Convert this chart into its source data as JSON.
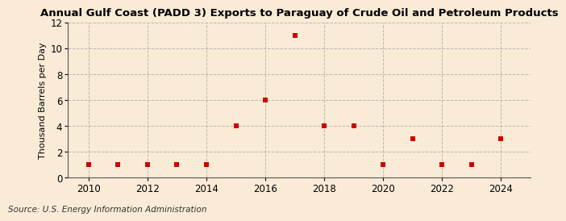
{
  "title": "Annual Gulf Coast (PADD 3) Exports to Paraguay of Crude Oil and Petroleum Products",
  "ylabel": "Thousand Barrels per Day",
  "source": "Source: U.S. Energy Information Administration",
  "background_color": "#faebd7",
  "plot_background_color": "#faebd7",
  "marker_color": "#cc0000",
  "marker": "s",
  "marker_size": 18,
  "years": [
    2010,
    2011,
    2012,
    2013,
    2014,
    2015,
    2016,
    2017,
    2018,
    2019,
    2020,
    2021,
    2022,
    2023,
    2024
  ],
  "values": [
    1,
    1,
    1,
    1,
    1,
    4,
    6,
    11,
    4,
    4,
    1,
    3,
    1,
    1,
    3
  ],
  "xlim": [
    2009.3,
    2025.0
  ],
  "ylim": [
    0,
    12
  ],
  "yticks": [
    0,
    2,
    4,
    6,
    8,
    10,
    12
  ],
  "xticks": [
    2010,
    2012,
    2014,
    2016,
    2018,
    2020,
    2022,
    2024
  ],
  "grid_color": "#aaaaaa",
  "grid_linestyle": "--",
  "grid_alpha": 0.8,
  "title_fontsize": 9.5,
  "label_fontsize": 8,
  "tick_fontsize": 8.5,
  "source_fontsize": 7.5
}
